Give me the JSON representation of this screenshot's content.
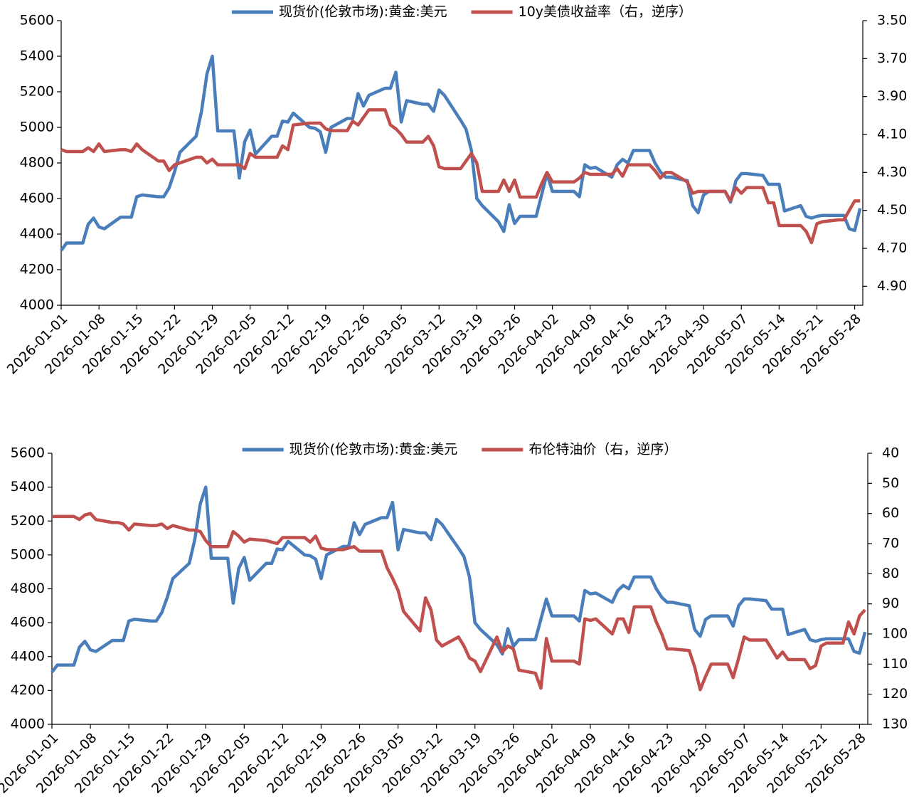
{
  "chart_data": [
    {
      "type": "line",
      "x": [
        "2026-01-01",
        "2026-01-02",
        "2026-01-05",
        "2026-01-06",
        "2026-01-07",
        "2026-01-08",
        "2026-01-09",
        "2026-01-12",
        "2026-01-13",
        "2026-01-14",
        "2026-01-15",
        "2026-01-16",
        "2026-01-19",
        "2026-01-20",
        "2026-01-21",
        "2026-01-22",
        "2026-01-23",
        "2026-01-26",
        "2026-01-27",
        "2026-01-28",
        "2026-01-29",
        "2026-01-30",
        "2026-02-02",
        "2026-02-03",
        "2026-02-04",
        "2026-02-05",
        "2026-02-06",
        "2026-02-09",
        "2026-02-10",
        "2026-02-11",
        "2026-02-12",
        "2026-02-13",
        "2026-02-16",
        "2026-02-17",
        "2026-02-18",
        "2026-02-19",
        "2026-02-20",
        "2026-02-23",
        "2026-02-24",
        "2026-02-25",
        "2026-02-26",
        "2026-02-27",
        "2026-03-02",
        "2026-03-03",
        "2026-03-04",
        "2026-03-05",
        "2026-03-06",
        "2026-03-09",
        "2026-03-10",
        "2026-03-11",
        "2026-03-12",
        "2026-03-13",
        "2026-03-16",
        "2026-03-17",
        "2026-03-18",
        "2026-03-19",
        "2026-03-20",
        "2026-03-23",
        "2026-03-24",
        "2026-03-25",
        "2026-03-26",
        "2026-03-27",
        "2026-03-30",
        "2026-03-31",
        "2026-04-01",
        "2026-04-02",
        "2026-04-03",
        "2026-04-06",
        "2026-04-07",
        "2026-04-08",
        "2026-04-09",
        "2026-04-10",
        "2026-04-13",
        "2026-04-14",
        "2026-04-15",
        "2026-04-16",
        "2026-04-17",
        "2026-04-20",
        "2026-04-21",
        "2026-04-22",
        "2026-04-23",
        "2026-04-24",
        "2026-04-27",
        "2026-04-28",
        "2026-04-29",
        "2026-04-30",
        "2026-05-01",
        "2026-05-04",
        "2026-05-05",
        "2026-05-06",
        "2026-05-07",
        "2026-05-08",
        "2026-05-11",
        "2026-05-12",
        "2026-05-13",
        "2026-05-14",
        "2026-05-15",
        "2026-05-18",
        "2026-05-19",
        "2026-05-20",
        "2026-05-21",
        "2026-05-22",
        "2026-05-25",
        "2026-05-26",
        "2026-05-27",
        "2026-05-28",
        "2026-05-29"
      ],
      "xlim": [
        "2026-01-01",
        "2026-05-29"
      ],
      "xticks": [
        "2026-01-01",
        "2026-01-08",
        "2026-01-15",
        "2026-01-22",
        "2026-01-29",
        "2026-02-05",
        "2026-02-12",
        "2026-02-19",
        "2026-02-26",
        "2026-03-05",
        "2026-03-12",
        "2026-03-19",
        "2026-03-26",
        "2026-04-02",
        "2026-04-09",
        "2026-04-16",
        "2026-04-23",
        "2026-04-30",
        "2026-05-07",
        "2026-05-14",
        "2026-05-21",
        "2026-05-28"
      ],
      "ylim": [
        4000,
        5600
      ],
      "yticks": [
        4000,
        4200,
        4400,
        4600,
        4800,
        5000,
        5200,
        5400,
        5600
      ],
      "y2lim": [
        3.5,
        5.0
      ],
      "y2_reversed": true,
      "y2ticks": [
        {
          "value": 3.5,
          "label": "3.50"
        },
        {
          "value": 3.7,
          "label": "3.70"
        },
        {
          "value": 3.9,
          "label": "3.90"
        },
        {
          "value": 4.1,
          "label": "4.10"
        },
        {
          "value": 4.3,
          "label": "4.30"
        },
        {
          "value": 4.5,
          "label": "4.50"
        },
        {
          "value": 4.7,
          "label": "4.70"
        },
        {
          "value": 4.9,
          "label": "4.90"
        }
      ],
      "legend": "top",
      "series": [
        {
          "name": "现货价(伦敦市场):黄金:美元",
          "color": "#4a7ebb",
          "values": [
            4308,
            4350,
            4350,
            4455,
            4490,
            4440,
            4430,
            4495,
            4495,
            4495,
            4610,
            4620,
            4610,
            4610,
            4660,
            4750,
            4860,
            4950,
            5090,
            5300,
            5400,
            4980,
            4980,
            4715,
            4920,
            4985,
            4850,
            4950,
            4950,
            5035,
            5030,
            5080,
            5000,
            4995,
            4975,
            4860,
            5000,
            5050,
            5050,
            5190,
            5120,
            5180,
            5220,
            5220,
            5310,
            5030,
            5150,
            5130,
            5130,
            5090,
            5210,
            5180,
            5040,
            4990,
            4870,
            4600,
            4560,
            4470,
            4415,
            4565,
            4460,
            4500,
            4500,
            4620,
            4740,
            4640,
            4640,
            4640,
            4610,
            4790,
            4770,
            4775,
            4720,
            4790,
            4820,
            4800,
            4870,
            4870,
            4800,
            4750,
            4720,
            4720,
            4700,
            4560,
            4520,
            4620,
            4640,
            4640,
            4580,
            4700,
            4740,
            4740,
            4730,
            4680,
            4680,
            4680,
            4530,
            4560,
            4500,
            4490,
            4500,
            4505,
            4505,
            4505,
            4430,
            4420,
            4545
          ]
        },
        {
          "name": "10y美债收益率（右，逆序）",
          "color": "#c0504d",
          "axis": "y2",
          "values": [
            4.18,
            4.19,
            4.19,
            4.17,
            4.19,
            4.15,
            4.19,
            4.18,
            4.18,
            4.19,
            4.15,
            4.18,
            4.24,
            4.24,
            4.29,
            4.26,
            4.25,
            4.22,
            4.22,
            4.25,
            4.23,
            4.26,
            4.26,
            4.26,
            4.28,
            4.2,
            4.22,
            4.22,
            4.22,
            4.16,
            4.18,
            4.05,
            4.04,
            4.04,
            4.04,
            4.07,
            4.08,
            4.08,
            4.03,
            4.05,
            4.01,
            3.97,
            3.97,
            4.05,
            4.07,
            4.1,
            4.14,
            4.14,
            4.11,
            4.16,
            4.27,
            4.28,
            4.28,
            4.24,
            4.2,
            4.25,
            4.4,
            4.4,
            4.34,
            4.4,
            4.34,
            4.43,
            4.43,
            4.36,
            4.3,
            4.35,
            4.35,
            4.35,
            4.33,
            4.3,
            4.31,
            4.31,
            4.31,
            4.28,
            4.32,
            4.26,
            4.26,
            4.26,
            4.29,
            4.33,
            4.3,
            4.3,
            4.35,
            4.41,
            4.4,
            4.4,
            4.4,
            4.4,
            4.45,
            4.38,
            4.41,
            4.38,
            4.38,
            4.46,
            4.46,
            4.58,
            4.58,
            4.58,
            4.61,
            4.67,
            4.57,
            4.56,
            4.55,
            4.55,
            4.5,
            4.45,
            4.45
          ]
        }
      ]
    },
    {
      "type": "line",
      "x": [
        "2026-01-01",
        "2026-01-02",
        "2026-01-05",
        "2026-01-06",
        "2026-01-07",
        "2026-01-08",
        "2026-01-09",
        "2026-01-12",
        "2026-01-13",
        "2026-01-14",
        "2026-01-15",
        "2026-01-16",
        "2026-01-19",
        "2026-01-20",
        "2026-01-21",
        "2026-01-22",
        "2026-01-23",
        "2026-01-26",
        "2026-01-27",
        "2026-01-28",
        "2026-01-29",
        "2026-01-30",
        "2026-02-02",
        "2026-02-03",
        "2026-02-04",
        "2026-02-05",
        "2026-02-06",
        "2026-02-09",
        "2026-02-10",
        "2026-02-11",
        "2026-02-12",
        "2026-02-13",
        "2026-02-16",
        "2026-02-17",
        "2026-02-18",
        "2026-02-19",
        "2026-02-20",
        "2026-02-23",
        "2026-02-24",
        "2026-02-25",
        "2026-02-26",
        "2026-02-27",
        "2026-03-02",
        "2026-03-03",
        "2026-03-04",
        "2026-03-05",
        "2026-03-06",
        "2026-03-09",
        "2026-03-10",
        "2026-03-11",
        "2026-03-12",
        "2026-03-13",
        "2026-03-16",
        "2026-03-17",
        "2026-03-18",
        "2026-03-19",
        "2026-03-20",
        "2026-03-23",
        "2026-03-24",
        "2026-03-25",
        "2026-03-26",
        "2026-03-27",
        "2026-03-30",
        "2026-03-31",
        "2026-04-01",
        "2026-04-02",
        "2026-04-03",
        "2026-04-06",
        "2026-04-07",
        "2026-04-08",
        "2026-04-09",
        "2026-04-10",
        "2026-04-13",
        "2026-04-14",
        "2026-04-15",
        "2026-04-16",
        "2026-04-17",
        "2026-04-20",
        "2026-04-21",
        "2026-04-22",
        "2026-04-23",
        "2026-04-24",
        "2026-04-27",
        "2026-04-28",
        "2026-04-29",
        "2026-04-30",
        "2026-05-01",
        "2026-05-04",
        "2026-05-05",
        "2026-05-06",
        "2026-05-07",
        "2026-05-08",
        "2026-05-11",
        "2026-05-12",
        "2026-05-13",
        "2026-05-14",
        "2026-05-15",
        "2026-05-18",
        "2026-05-19",
        "2026-05-20",
        "2026-05-21",
        "2026-05-22",
        "2026-05-25",
        "2026-05-26",
        "2026-05-27",
        "2026-05-28",
        "2026-05-29"
      ],
      "xlim": [
        "2026-01-01",
        "2026-05-29"
      ],
      "xticks": [
        "2026-01-01",
        "2026-01-08",
        "2026-01-15",
        "2026-01-22",
        "2026-01-29",
        "2026-02-05",
        "2026-02-12",
        "2026-02-19",
        "2026-02-26",
        "2026-03-05",
        "2026-03-12",
        "2026-03-19",
        "2026-03-26",
        "2026-04-02",
        "2026-04-09",
        "2026-04-16",
        "2026-04-23",
        "2026-04-30",
        "2026-05-07",
        "2026-05-14",
        "2026-05-21",
        "2026-05-28"
      ],
      "ylim": [
        4000,
        5600
      ],
      "yticks": [
        4000,
        4200,
        4400,
        4600,
        4800,
        5000,
        5200,
        5400,
        5600
      ],
      "y2lim": [
        40,
        130
      ],
      "y2_reversed": true,
      "y2ticks": [
        40,
        50,
        60,
        70,
        80,
        90,
        100,
        110,
        120,
        130
      ],
      "legend": "top",
      "series": [
        {
          "name": "现货价(伦敦市场):黄金:美元",
          "color": "#4a7ebb",
          "values": [
            4308,
            4350,
            4350,
            4455,
            4490,
            4440,
            4430,
            4495,
            4495,
            4495,
            4610,
            4620,
            4610,
            4610,
            4660,
            4750,
            4860,
            4950,
            5090,
            5300,
            5400,
            4980,
            4980,
            4715,
            4920,
            4985,
            4850,
            4950,
            4950,
            5035,
            5030,
            5080,
            5000,
            4995,
            4975,
            4860,
            5000,
            5050,
            5050,
            5190,
            5120,
            5180,
            5220,
            5220,
            5310,
            5030,
            5150,
            5130,
            5130,
            5090,
            5210,
            5180,
            5040,
            4990,
            4870,
            4600,
            4560,
            4470,
            4415,
            4565,
            4460,
            4500,
            4500,
            4620,
            4740,
            4640,
            4640,
            4640,
            4610,
            4790,
            4770,
            4775,
            4720,
            4790,
            4820,
            4800,
            4870,
            4870,
            4800,
            4750,
            4720,
            4720,
            4700,
            4560,
            4520,
            4620,
            4640,
            4640,
            4580,
            4700,
            4740,
            4740,
            4730,
            4680,
            4680,
            4680,
            4530,
            4560,
            4500,
            4490,
            4500,
            4505,
            4505,
            4505,
            4430,
            4420,
            4545
          ]
        },
        {
          "name": "布伦特油价（右，逆序）",
          "color": "#c0504d",
          "axis": "y2",
          "values": [
            61,
            61,
            61,
            62,
            60.5,
            60,
            62,
            63,
            63,
            63.5,
            65.5,
            63.5,
            64,
            64,
            63.5,
            65,
            64,
            65.5,
            65.5,
            66,
            69,
            71,
            71,
            66,
            67.5,
            69.5,
            68.5,
            69,
            69.5,
            70,
            68,
            68,
            68,
            69.5,
            67.5,
            71.5,
            72,
            72,
            71.5,
            71,
            72.5,
            72.5,
            72.5,
            78,
            81.5,
            85.5,
            92.5,
            99,
            88,
            92,
            102,
            104,
            101,
            104,
            108,
            109,
            112.5,
            101,
            106,
            104,
            105,
            112,
            113,
            118,
            101.5,
            109,
            109,
            109,
            110,
            95,
            95.5,
            95,
            100,
            95,
            95,
            99.5,
            91,
            91,
            96,
            100,
            105,
            105,
            105.5,
            111,
            118.5,
            114,
            110,
            110,
            114.5,
            108,
            101,
            102,
            102,
            105,
            108,
            106,
            108.5,
            108.5,
            111.5,
            110.5,
            104,
            103,
            103,
            96,
            100,
            94,
            92
          ]
        }
      ]
    }
  ]
}
